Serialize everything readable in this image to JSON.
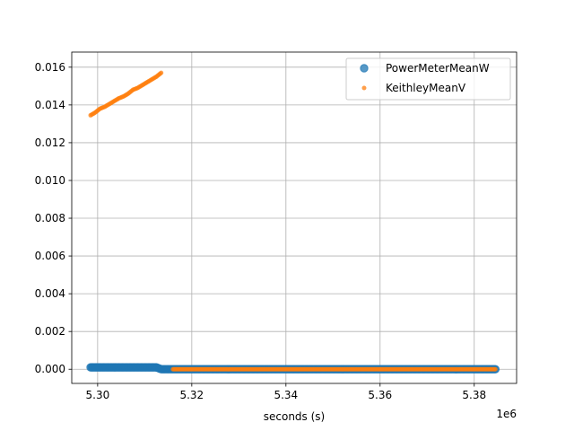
{
  "chart_data": {
    "type": "scatter",
    "xlabel": "seconds (s)",
    "ylabel": "",
    "x_offset_label": "1e6",
    "x_scale": 1000000,
    "xlim": [
      5.2945,
      5.389
    ],
    "ylim": [
      -0.00075,
      0.0168
    ],
    "x_ticks": [
      5.3,
      5.32,
      5.34,
      5.36,
      5.38
    ],
    "x_tick_labels": [
      "5.30",
      "5.32",
      "5.34",
      "5.36",
      "5.38"
    ],
    "y_ticks": [
      0.0,
      0.002,
      0.004,
      0.006,
      0.008,
      0.01,
      0.012,
      0.014,
      0.016
    ],
    "y_tick_labels": [
      "0.000",
      "0.002",
      "0.004",
      "0.006",
      "0.008",
      "0.010",
      "0.012",
      "0.014",
      "0.016"
    ],
    "grid": true,
    "legend_position": "top-right",
    "series": [
      {
        "name": "PowerMeterMeanW",
        "color": "#1f77b4",
        "marker": "circle-large",
        "x": [
          5.2985,
          5.2995,
          5.3005,
          5.3015,
          5.3025,
          5.3035,
          5.3045,
          5.3055,
          5.3065,
          5.3075,
          5.3085,
          5.3095,
          5.3105,
          5.3115,
          5.3125,
          5.3135,
          5.316,
          5.32,
          5.325,
          5.33,
          5.335,
          5.34,
          5.345,
          5.35,
          5.355,
          5.36,
          5.365,
          5.37,
          5.375,
          5.38,
          5.3845
        ],
        "y": [
          0.0001,
          0.0001,
          0.0001,
          0.0001,
          0.0001,
          0.0001,
          0.0001,
          0.0001,
          0.0001,
          0.0001,
          0.0001,
          0.0001,
          0.0001,
          0.0001,
          0.0001,
          0.0,
          0.0,
          0.0,
          0.0,
          0.0,
          0.0,
          0.0,
          0.0,
          0.0,
          0.0,
          0.0,
          0.0,
          0.0,
          0.0,
          0.0,
          0.0
        ]
      },
      {
        "name": "KeithleyMeanV",
        "color": "#ff7f0e",
        "marker": "circle-small",
        "x": [
          5.2985,
          5.2995,
          5.3005,
          5.3015,
          5.3025,
          5.3035,
          5.3045,
          5.3055,
          5.3065,
          5.3075,
          5.3085,
          5.3095,
          5.3105,
          5.3115,
          5.3125,
          5.3135,
          5.316,
          5.32,
          5.325,
          5.33,
          5.335,
          5.34,
          5.345,
          5.35,
          5.355,
          5.36,
          5.365,
          5.37,
          5.375,
          5.38,
          5.3845
        ],
        "y": [
          0.01345,
          0.0136,
          0.0138,
          0.0139,
          0.01405,
          0.0142,
          0.01435,
          0.01445,
          0.0146,
          0.0148,
          0.0149,
          0.01505,
          0.0152,
          0.01535,
          0.0155,
          0.0157,
          0.0,
          0.0,
          0.0,
          0.0,
          0.0,
          0.0,
          0.0,
          0.0,
          0.0,
          0.0,
          0.0,
          0.0,
          0.0,
          0.0,
          0.0
        ]
      }
    ]
  }
}
